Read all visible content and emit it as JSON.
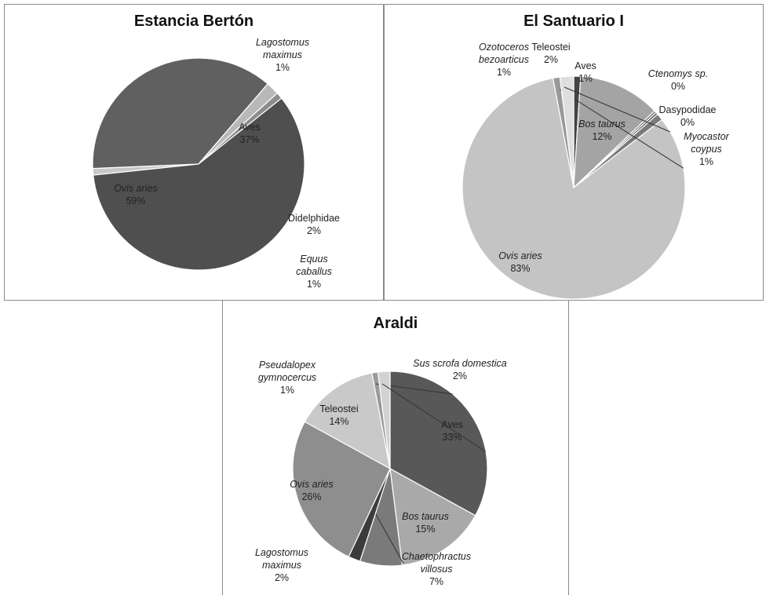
{
  "chart_data": [
    {
      "type": "pie",
      "title": "Estancia Bertón",
      "slices": [
        {
          "name": "Lagostomus maximus",
          "lines": [
            "Lagostomus",
            "maximus"
          ],
          "italic": true,
          "value": 1,
          "label": "1%",
          "color": "#c8c8c8"
        },
        {
          "name": "Aves",
          "lines": [
            "Aves"
          ],
          "italic": false,
          "value": 37,
          "label": "37%",
          "color": "#606060"
        },
        {
          "name": "Didelphidae",
          "lines": [
            "Didelphidae"
          ],
          "italic": false,
          "value": 2,
          "label": "2%",
          "color": "#b8b8b8"
        },
        {
          "name": "Equus caballus",
          "lines": [
            "Equus",
            "caballus"
          ],
          "italic": true,
          "value": 1,
          "label": "1%",
          "color": "#8c8c8c"
        },
        {
          "name": "Ovis aries",
          "lines": [
            "Ovis aries"
          ],
          "italic": true,
          "value": 59,
          "label": "59%",
          "color": "#4f4f4f"
        }
      ]
    },
    {
      "type": "pie",
      "title": "El Santuario I",
      "slices": [
        {
          "name": "Aves",
          "lines": [
            "Aves"
          ],
          "italic": false,
          "value": 1,
          "label": "1%",
          "color": "#444444"
        },
        {
          "name": "Bos taurus",
          "lines": [
            "Bos taurus"
          ],
          "italic": true,
          "value": 12,
          "label": "12%",
          "color": "#a4a4a4"
        },
        {
          "name": "Ctenomys sp.",
          "lines": [
            "Ctenomys sp."
          ],
          "italic": true,
          "value": 0,
          "label": "0%",
          "color": "#777777"
        },
        {
          "name": "Dasypodidae",
          "lines": [
            "Dasypodidae"
          ],
          "italic": false,
          "value": 0,
          "label": "0%",
          "color": "#555555"
        },
        {
          "name": "Myocastor coypus",
          "lines": [
            "Myocastor",
            "coypus"
          ],
          "italic": true,
          "value": 1,
          "label": "1%",
          "color": "#7a7a7a"
        },
        {
          "name": "Ovis aries",
          "lines": [
            "Ovis aries"
          ],
          "italic": true,
          "value": 83,
          "label": "83%",
          "color": "#c4c4c4"
        },
        {
          "name": "Ozotoceros bezoarticus",
          "lines": [
            "Ozotoceros",
            "bezoarticus"
          ],
          "italic": true,
          "value": 1,
          "label": "1%",
          "color": "#999999"
        },
        {
          "name": "Teleostei",
          "lines": [
            "Teleostei"
          ],
          "italic": false,
          "value": 2,
          "label": "2%",
          "color": "#dedede"
        }
      ]
    },
    {
      "type": "pie",
      "title": "Araldi",
      "slices": [
        {
          "name": "Aves",
          "lines": [
            "Aves"
          ],
          "italic": false,
          "value": 33,
          "label": "33%",
          "color": "#585858"
        },
        {
          "name": "Bos taurus",
          "lines": [
            "Bos taurus"
          ],
          "italic": true,
          "value": 15,
          "label": "15%",
          "color": "#a9a9a9"
        },
        {
          "name": "Chaetophractus villosus",
          "lines": [
            "Chaetophractus",
            "villosus"
          ],
          "italic": true,
          "value": 7,
          "label": "7%",
          "color": "#7a7a7a"
        },
        {
          "name": "Lagostomus maximus",
          "lines": [
            "Lagostomus",
            "maximus"
          ],
          "italic": true,
          "value": 2,
          "label": "2%",
          "color": "#3c3c3c"
        },
        {
          "name": "Ovis aries",
          "lines": [
            "Ovis aries"
          ],
          "italic": true,
          "value": 26,
          "label": "26%",
          "color": "#8e8e8e"
        },
        {
          "name": "Teleostei",
          "lines": [
            "Teleostei"
          ],
          "italic": false,
          "value": 14,
          "label": "14%",
          "color": "#c9c9c9"
        },
        {
          "name": "Pseudalopex gymnocercus",
          "lines": [
            "Pseudalopex",
            "gymnocercus"
          ],
          "italic": true,
          "value": 1,
          "label": "1%",
          "color": "#9a9a9a"
        },
        {
          "name": "Sus scrofa domestica",
          "lines": [
            "Sus scrofa domestica"
          ],
          "italic": true,
          "value": 2,
          "label": "2%",
          "color": "#d2d2d2"
        }
      ]
    }
  ]
}
